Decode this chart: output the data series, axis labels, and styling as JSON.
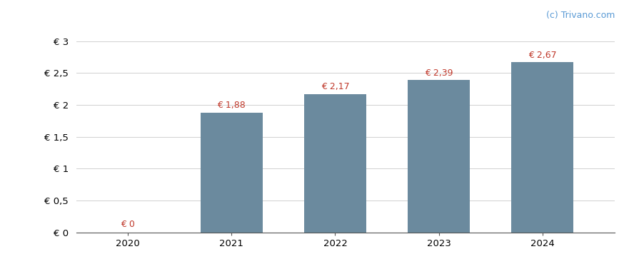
{
  "years": [
    2020,
    2021,
    2022,
    2023,
    2024
  ],
  "values": [
    0,
    1.88,
    2.17,
    2.39,
    2.67
  ],
  "bar_color": "#6b8a9e",
  "bar_labels": [
    "€ 0",
    "€ 1,88",
    "€ 2,17",
    "€ 2,39",
    "€ 2,67"
  ],
  "label_color": "#c0392b",
  "ytick_labels": [
    "€ 0",
    "€ 0,5",
    "€ 1",
    "€ 1,5",
    "€ 2",
    "€ 2,5",
    "€ 3"
  ],
  "ytick_values": [
    0,
    0.5,
    1.0,
    1.5,
    2.0,
    2.5,
    3.0
  ],
  "ylim": [
    0,
    3.15
  ],
  "background_color": "#ffffff",
  "grid_color": "#d0d0d0",
  "watermark": "(c) Trivano.com",
  "watermark_color": "#5b9bd5",
  "bar_width": 0.6,
  "label_fontsize": 9,
  "tick_fontsize": 9.5,
  "watermark_fontsize": 9
}
